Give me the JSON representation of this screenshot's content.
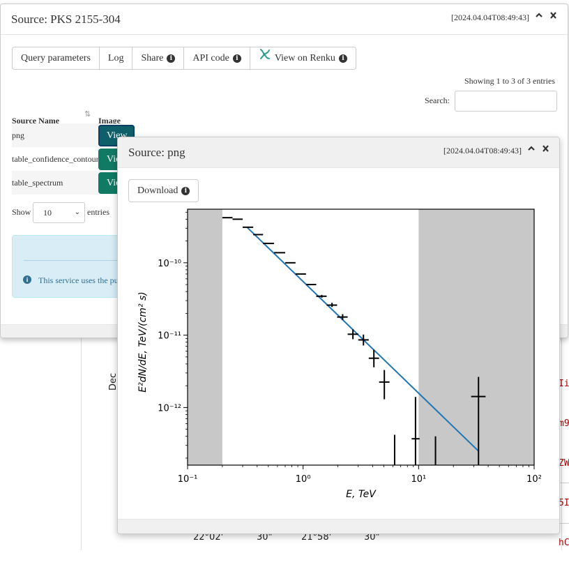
{
  "background": {
    "axis_label": "Dec",
    "tick_labels": [
      "22°02'",
      "30\"",
      "21°58'",
      "30\""
    ],
    "code_lines": [
      "Ii",
      "m9",
      "ZW",
      "5I",
      "hC"
    ]
  },
  "dialog_main": {
    "title": "Source: PKS 2155-304",
    "timestamp": "[2024.04.04T08:49:43]",
    "collapse_icon": "chevron-up-icon",
    "close_icon": "close-icon",
    "buttons": [
      {
        "label": "Query parameters",
        "info": false
      },
      {
        "label": "Log",
        "info": false
      },
      {
        "label": "Share",
        "info": true
      },
      {
        "label": "API code",
        "info": true
      },
      {
        "label": "View on Renku",
        "info": true,
        "icon": "renku-icon"
      }
    ],
    "showing": "Showing 1 to 3 of 3 entries",
    "search_label": "Search:",
    "search_value": "",
    "table": {
      "headers": [
        "Source Name",
        "Image"
      ],
      "rows": [
        {
          "name": "png",
          "action": "View"
        },
        {
          "name": "table_confidence_contour",
          "action": "View"
        },
        {
          "name": "table_spectrum",
          "action": "View"
        }
      ]
    },
    "length_menu": {
      "prefix": "Show",
      "selected": "10",
      "suffix": "entries"
    },
    "alert_text": "This service uses the pu"
  },
  "dialog_image": {
    "title": "Source: png",
    "timestamp": "[2024.04.04T08:49:43]",
    "download_label": "Download"
  },
  "chart_data": {
    "type": "scatter",
    "title": "",
    "xlabel": "E, TeV",
    "ylabel": "E²dN/dE, TeV/(cm² s)",
    "xscale": "log",
    "yscale": "log",
    "xlim": [
      0.1,
      100
    ],
    "ylim": [
      1.6e-13,
      5.5e-10
    ],
    "x_ticks": [
      "10⁻¹",
      "10⁰",
      "10¹",
      "10²"
    ],
    "y_ticks": [
      "10⁻¹²",
      "10⁻¹¹",
      "10⁻¹⁰"
    ],
    "shaded_x_ranges": [
      [
        0.1,
        0.2
      ],
      [
        10,
        100
      ]
    ],
    "points": [
      {
        "x": 0.22,
        "y": 4.2e-10,
        "xerr": [
          0.2,
          0.245
        ]
      },
      {
        "x": 0.27,
        "y": 4e-10,
        "xerr": [
          0.245,
          0.3
        ]
      },
      {
        "x": 0.33,
        "y": 3.1e-10,
        "xerr": [
          0.3,
          0.37
        ]
      },
      {
        "x": 0.41,
        "y": 2.45e-10,
        "xerr": [
          0.37,
          0.45
        ]
      },
      {
        "x": 0.51,
        "y": 1.85e-10,
        "xerr": [
          0.45,
          0.56
        ]
      },
      {
        "x": 0.63,
        "y": 1.38e-10,
        "xerr": [
          0.56,
          0.7
        ]
      },
      {
        "x": 0.78,
        "y": 1e-10,
        "xerr": [
          0.7,
          0.86
        ]
      },
      {
        "x": 0.96,
        "y": 7e-11,
        "xerr": [
          0.86,
          1.06
        ]
      },
      {
        "x": 1.18,
        "y": 5e-11,
        "xerr": [
          1.06,
          1.3
        ]
      },
      {
        "x": 1.45,
        "y": 3.45e-11,
        "xerr": [
          1.3,
          1.6
        ],
        "yerr": [
          3.3e-11,
          3.6e-11
        ]
      },
      {
        "x": 1.78,
        "y": 2.6e-11,
        "xerr": [
          1.6,
          1.97
        ],
        "yerr": [
          2.45e-11,
          2.8e-11
        ]
      },
      {
        "x": 2.2,
        "y": 1.78e-11,
        "xerr": [
          1.97,
          2.43
        ],
        "yerr": [
          1.62e-11,
          1.95e-11
        ]
      },
      {
        "x": 2.7,
        "y": 1.03e-11,
        "xerr": [
          2.43,
          3.0
        ],
        "yerr": [
          8.8e-12,
          1.2e-11
        ]
      },
      {
        "x": 3.33,
        "y": 8.6e-12,
        "xerr": [
          3.0,
          3.7
        ],
        "yerr": [
          7.2e-12,
          1.02e-11
        ]
      },
      {
        "x": 4.1,
        "y": 4.8e-12,
        "xerr": [
          3.7,
          4.55
        ],
        "yerr": [
          3.6e-12,
          6.3e-12
        ]
      },
      {
        "x": 5.05,
        "y": 2.25e-12,
        "xerr": [
          4.55,
          5.6
        ],
        "yerr": [
          1.3e-12,
          3.3e-12
        ]
      },
      {
        "x": 6.2,
        "y": null,
        "yerr": [
          1.6e-13,
          4.2e-13
        ]
      },
      {
        "x": 9.4,
        "y": 3.7e-13,
        "xerr": [
          8.7,
          10.2
        ],
        "yerr": [
          1.6e-13,
          1.4e-12
        ]
      },
      {
        "x": 14.0,
        "y": null,
        "yerr": [
          1.6e-13,
          4e-13
        ]
      },
      {
        "x": 33.0,
        "y": 1.42e-12,
        "xerr": [
          28.5,
          38.0
        ],
        "yerr": [
          1.6e-13,
          2.65e-12
        ]
      }
    ],
    "model_line": {
      "x": [
        0.33,
        33.0
      ],
      "y": [
        3.05e-10,
        2.5e-13
      ],
      "color": "#1f77b4"
    },
    "shade_color": "#c8c8c8"
  }
}
